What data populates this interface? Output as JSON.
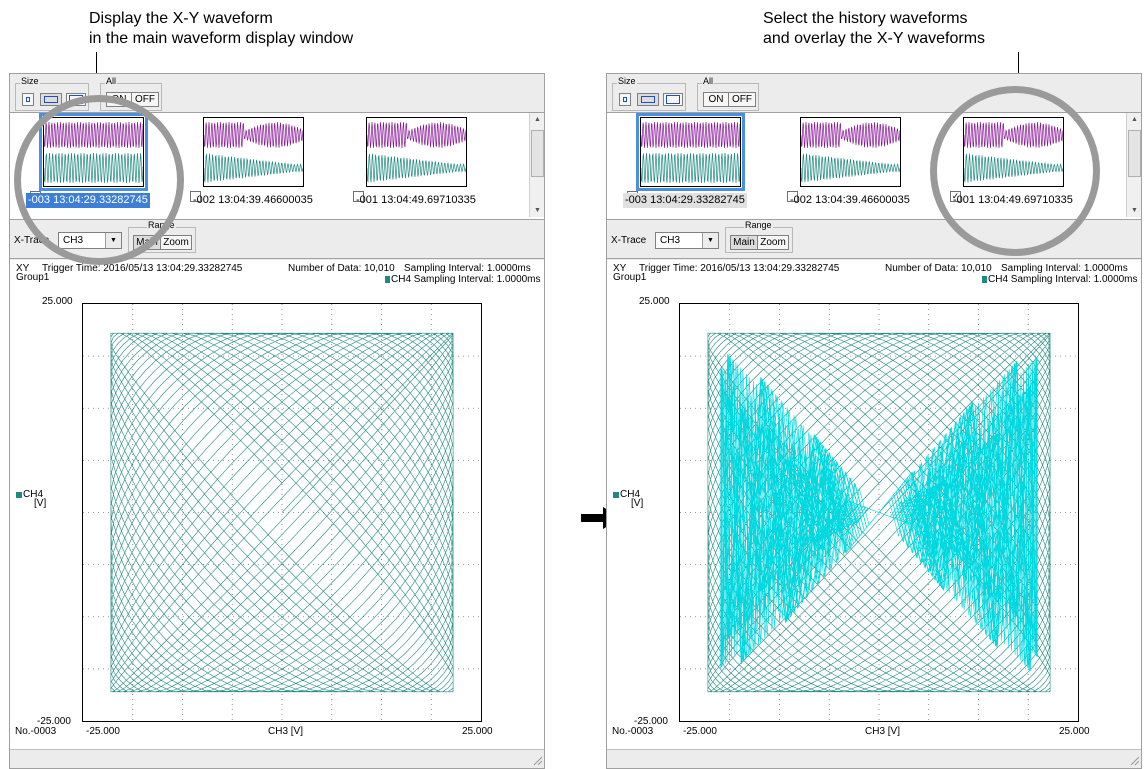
{
  "captions": {
    "left": [
      "Display the X-Y waveform",
      "in the main waveform display window"
    ],
    "right": [
      "Select the history waveforms",
      "and overlay the X-Y waveforms"
    ]
  },
  "toolbar": {
    "size_label": "Size",
    "all_label": "All",
    "on_label": "ON",
    "off_label": "OFF"
  },
  "xtrace": {
    "label": "X-Trace",
    "left_value": "CH3",
    "right_value": "CH3",
    "range_label": "Range",
    "main_label": "Main",
    "zoom_label": "Zoom"
  },
  "panels": [
    {
      "thumbs": [
        {
          "label": "-003 13:04:29.33282745",
          "checked": false,
          "selected": true
        },
        {
          "label": "-002 13:04:39.46600035",
          "checked": false,
          "selected": false
        },
        {
          "label": "-001 13:04:49.69710335",
          "checked": false,
          "selected": false
        }
      ]
    },
    {
      "thumbs": [
        {
          "label": "-003 13:04:29.33282745",
          "checked": true,
          "selected": true
        },
        {
          "label": "-002 13:04:39.46600035",
          "checked": false,
          "selected": false
        },
        {
          "label": "-001 13:04:49.69710335",
          "checked": true,
          "selected": false
        }
      ]
    }
  ],
  "waveform": {
    "mode": "XY",
    "group": "Group1",
    "trigger_time": "Trigger Time: 2016/05/13 13:04:29.33282745",
    "number_of_data": "Number of Data: 10,010",
    "sampling_interval": "Sampling Interval:  1.0000ms",
    "ch4_sampling": "CH4 Sampling Interval:  1.0000ms",
    "y_channel": "CH4",
    "y_unit": "[V]",
    "x_axis_label": "CH3  [V]",
    "y_max": "25.000",
    "y_min": "-25.000",
    "x_min": "-25.000",
    "x_max": "25.000",
    "record_no": "No.-0003"
  },
  "colors": {
    "trace_primary": "#1e8a80",
    "trace_overlay": "#00d8e0",
    "thumb_top": "#8a1a9a",
    "thumb_bottom": "#1e8a80",
    "selection": "#3d7fd6",
    "circle": "#9a9a9a"
  },
  "chart_data": {
    "type": "scatter",
    "xlim": [
      -25,
      25
    ],
    "ylim": [
      -25,
      25
    ],
    "grid": true
  }
}
